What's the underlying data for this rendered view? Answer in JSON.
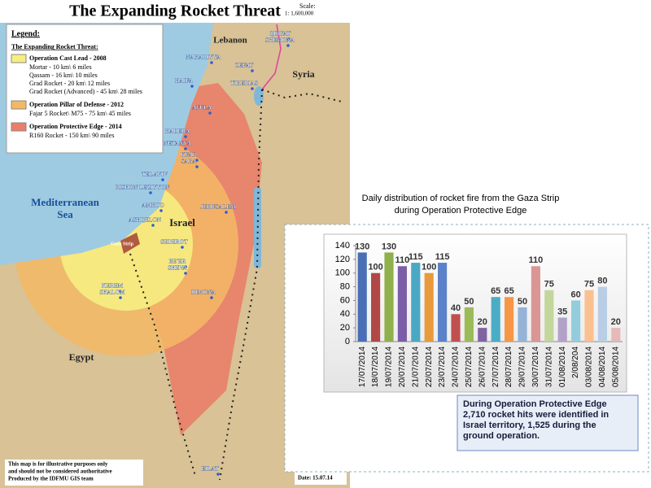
{
  "map": {
    "title": "The Expanding Rocket Threat",
    "scale_label": "Scale:",
    "scale": "1: 1,600,000",
    "legend": {
      "heading": "Legend:",
      "subheading": "The Expanding Rocket Threat:",
      "groups": [
        {
          "name": "Operation Cast Lead - 2008",
          "color": "#f6ee82",
          "items": [
            "Mortar - 10 km\\ 6 miles",
            "Qassam - 16 km\\ 10 miles",
            "Grad Rocket - 20 km\\ 12 miles",
            "Grad Rocket (Advanced) - 45 km\\ 28 miles"
          ]
        },
        {
          "name": "Operation Pillar of Defense - 2012",
          "color": "#f3b865",
          "items": [
            "Fajar 5 Rocket\\ M75 - 75 km\\ 45 miles"
          ]
        },
        {
          "name": "Operation Protective Edge - 2014",
          "color": "#ea7e68",
          "items": [
            "R160 Rocket - 150 km\\ 90 miles"
          ]
        }
      ]
    },
    "regions": [
      "Lebanon",
      "Syria",
      "Mediterranean",
      "Sea",
      "Israel",
      "Egypt",
      "Gaza Strip"
    ],
    "cities": [
      "QIRYAT",
      "SHEMONA",
      "NAHARIYYA",
      "ZEFAT",
      "HAIFA",
      "TIBERIAS",
      "AFULA",
      "HADERA",
      "NETANYA",
      "KFAR",
      "SABA",
      "TEL AVIV",
      "RISHON LEZIYYON",
      "AMHOD",
      "ASHQELON",
      "JERUSALEM",
      "SEDEROT",
      "BE'ER",
      "SHEVA",
      "KEREM",
      "SHALOM",
      "DIMONA",
      "EILAT"
    ],
    "disclaimer": [
      "This map is for illustrative purposes only",
      "and should not be considered authoritative",
      "Produced by the IDFMU GIS team"
    ],
    "date": "Date: 15.07.14"
  },
  "chart_data": {
    "type": "bar",
    "title": [
      "Daily distribution of rocket fire from the Gaza Strip",
      "during Operation Protective Edge"
    ],
    "categories": [
      "17/07/2014",
      "18/07/2014",
      "19/07/2014",
      "20/07/2014",
      "21/07/2014",
      "22/07/2014",
      "23/07/2014",
      "24/07/2014",
      "25/07/2014",
      "26/07/2014",
      "27/07/2014",
      "28/07/2014",
      "29/07/2014",
      "30/07/2014",
      "31/07/2014",
      "01/08/2014",
      "2/08/204",
      "03/08/2014",
      "04/08/2014",
      "05/08/2014"
    ],
    "values": [
      130,
      100,
      130,
      110,
      115,
      100,
      115,
      40,
      50,
      20,
      65,
      65,
      50,
      110,
      75,
      35,
      60,
      75,
      80,
      20
    ],
    "colors": [
      "#4a6fb5",
      "#b04848",
      "#8fb04a",
      "#7b5ea7",
      "#4aa8c4",
      "#e89a3c",
      "#5b82c8",
      "#c05050",
      "#9bbb59",
      "#8064a2",
      "#4bacc6",
      "#f79646",
      "#95b3d7",
      "#d99694",
      "#c3d69b",
      "#b2a2c7",
      "#93cddd",
      "#fac090",
      "#b9cde5",
      "#e6b9b8"
    ],
    "ylim": [
      0,
      140
    ],
    "yticks": [
      0,
      20,
      40,
      60,
      80,
      100,
      120,
      140
    ],
    "callout": [
      "During Operation Protective Edge",
      "2,710 rocket hits were identified in",
      "Israel territory, 1,525 during the",
      "ground operation."
    ]
  }
}
